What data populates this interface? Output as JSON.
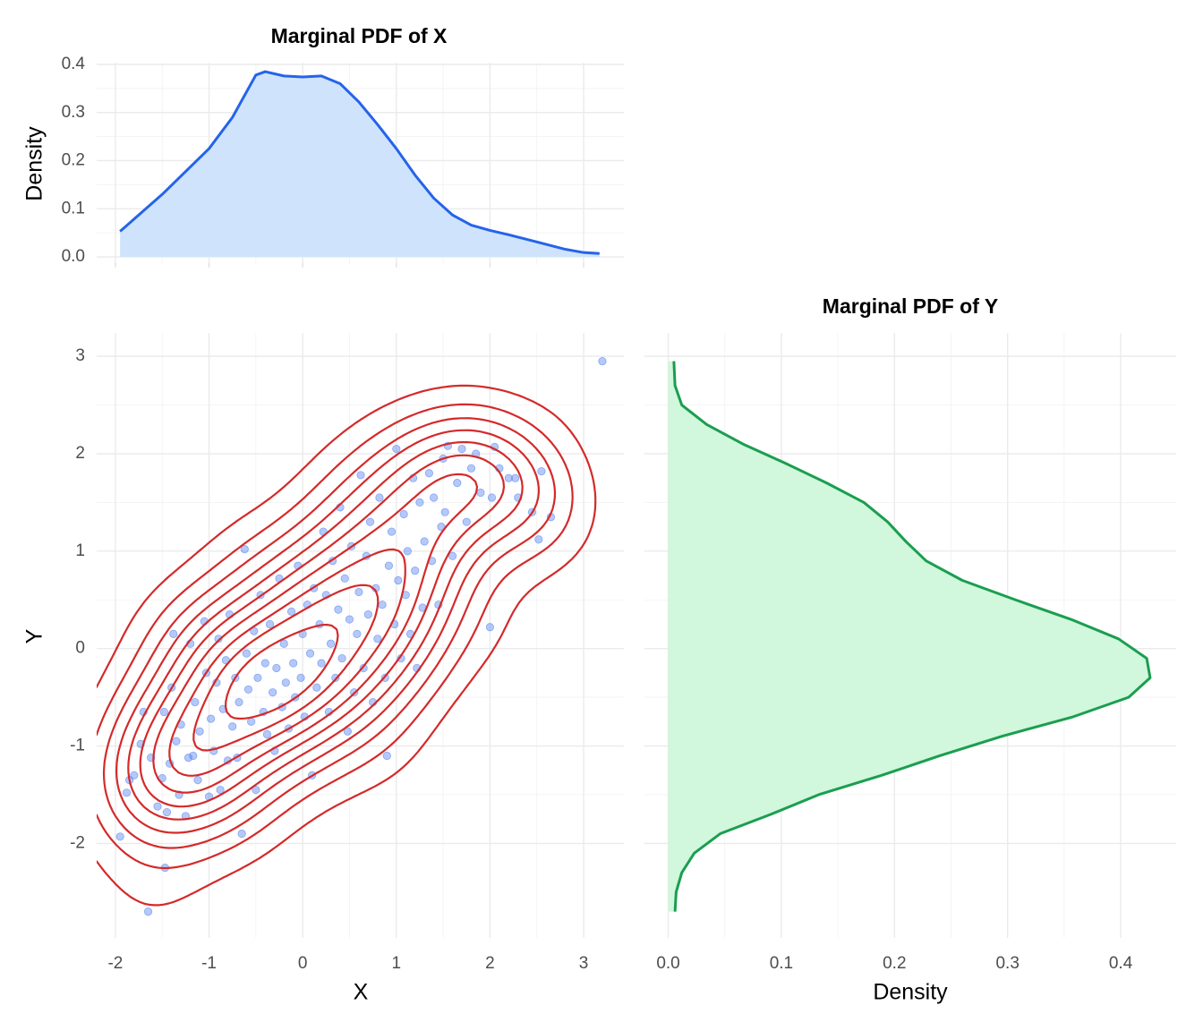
{
  "chart_data": [
    {
      "type": "area",
      "title": "Marginal PDF of X",
      "y_label": "Density",
      "x": [
        -1.95,
        -1.5,
        -1.0,
        -0.75,
        -0.5,
        -0.4,
        -0.2,
        0,
        0.2,
        0.4,
        0.6,
        0.8,
        1.0,
        1.2,
        1.4,
        1.6,
        1.8,
        2.0,
        2.2,
        2.5,
        2.8,
        3.0,
        3.17
      ],
      "values": [
        0.053,
        0.13,
        0.225,
        0.29,
        0.378,
        0.385,
        0.376,
        0.374,
        0.376,
        0.36,
        0.322,
        0.275,
        0.225,
        0.17,
        0.122,
        0.087,
        0.066,
        0.055,
        0.046,
        0.031,
        0.016,
        0.009,
        0.007
      ],
      "color": "#2563eb",
      "fill": "#cfe4fc",
      "xlim": [
        -2.2,
        3.43
      ],
      "ylim": [
        -0.0167,
        0.4037
      ],
      "xticks": [
        -2,
        -1,
        0,
        1,
        2,
        3
      ],
      "yticks": [
        {
          "value": 0,
          "label": "0.0"
        },
        0.1,
        0.2,
        0.3,
        0.4
      ],
      "grid": true
    },
    {
      "type": "scatter",
      "x_label": "X",
      "y_label": "Y",
      "x": [
        -1.95,
        -1.88,
        -1.85,
        -1.8,
        -1.73,
        -1.7,
        -1.65,
        -1.62,
        -1.55,
        -1.5,
        -1.48,
        -1.47,
        -1.45,
        -1.42,
        -1.4,
        -1.38,
        -1.35,
        -1.32,
        -1.3,
        -1.25,
        -1.22,
        -1.2,
        -1.17,
        -1.15,
        -1.12,
        -1.1,
        -1.05,
        -1.03,
        -1.0,
        -0.98,
        -0.95,
        -0.92,
        -0.9,
        -0.88,
        -0.85,
        -0.82,
        -0.8,
        -0.78,
        -0.75,
        -0.72,
        -0.7,
        -0.68,
        -0.65,
        -0.62,
        -0.6,
        -0.58,
        -0.55,
        -0.52,
        -0.5,
        -0.48,
        -0.45,
        -0.42,
        -0.4,
        -0.38,
        -0.35,
        -0.32,
        -0.3,
        -0.28,
        -0.25,
        -0.22,
        -0.2,
        -0.18,
        -0.15,
        -0.12,
        -0.1,
        -0.08,
        -0.05,
        -0.02,
        0.0,
        0.02,
        0.05,
        0.08,
        0.1,
        0.12,
        0.15,
        0.18,
        0.2,
        0.22,
        0.25,
        0.28,
        0.3,
        0.32,
        0.35,
        0.38,
        0.4,
        0.42,
        0.45,
        0.48,
        0.5,
        0.52,
        0.55,
        0.58,
        0.6,
        0.62,
        0.65,
        0.68,
        0.7,
        0.72,
        0.75,
        0.78,
        0.8,
        0.82,
        0.85,
        0.88,
        0.9,
        0.92,
        0.95,
        0.98,
        1.0,
        1.02,
        1.05,
        1.08,
        1.1,
        1.12,
        1.15,
        1.18,
        1.2,
        1.22,
        1.25,
        1.28,
        1.3,
        1.35,
        1.38,
        1.4,
        1.45,
        1.48,
        1.5,
        1.52,
        1.55,
        1.6,
        1.65,
        1.7,
        1.75,
        1.8,
        1.85,
        1.9,
        2.0,
        2.02,
        2.05,
        2.1,
        2.2,
        2.27,
        2.3,
        2.45,
        2.52,
        2.55,
        2.65,
        3.2
      ],
      "values": [
        -1.93,
        -1.48,
        -1.35,
        -1.3,
        -0.98,
        -0.65,
        -2.7,
        -1.12,
        -1.62,
        -1.33,
        -0.65,
        -2.25,
        -1.68,
        -1.18,
        -0.4,
        0.15,
        -0.95,
        -1.5,
        -0.78,
        -1.72,
        -1.12,
        0.05,
        -1.1,
        -0.55,
        -1.35,
        -0.85,
        0.28,
        -0.25,
        -1.52,
        -0.72,
        -1.05,
        -0.35,
        0.1,
        -1.45,
        -0.62,
        -0.12,
        -1.15,
        0.35,
        -0.8,
        -0.3,
        -1.12,
        -0.55,
        -1.9,
        1.02,
        -0.05,
        -0.42,
        -0.75,
        0.18,
        -1.45,
        -0.3,
        0.55,
        -0.65,
        -0.15,
        -0.88,
        0.25,
        -0.45,
        -1.05,
        -0.2,
        0.72,
        -0.6,
        0.05,
        -0.35,
        -0.82,
        0.38,
        -0.15,
        -0.5,
        0.85,
        -0.3,
        0.15,
        -0.7,
        0.45,
        -0.05,
        -1.3,
        0.62,
        -0.4,
        0.25,
        -0.15,
        1.2,
        0.55,
        -0.65,
        0.05,
        0.9,
        -0.3,
        0.4,
        1.45,
        -0.1,
        0.72,
        -0.85,
        0.3,
        1.05,
        -0.45,
        0.15,
        0.58,
        1.78,
        -0.2,
        0.95,
        0.35,
        1.3,
        -0.55,
        0.62,
        0.1,
        1.55,
        0.45,
        -0.3,
        -1.1,
        0.85,
        1.2,
        0.25,
        2.05,
        0.7,
        -0.1,
        1.38,
        0.55,
        1.0,
        0.15,
        1.75,
        0.8,
        -0.2,
        1.5,
        0.42,
        1.1,
        1.8,
        0.9,
        1.55,
        0.45,
        1.25,
        1.95,
        1.4,
        2.08,
        0.95,
        1.7,
        2.05,
        1.3,
        1.85,
        2.0,
        1.6,
        0.22,
        1.55,
        2.07,
        1.85,
        1.75,
        1.75,
        1.55,
        1.4,
        1.12,
        1.82,
        1.35,
        2.95
      ],
      "color": "#4f7ef0",
      "contour_color": "#d42a2a",
      "xlim": [
        -2.2,
        3.43
      ],
      "ylim": [
        -2.97,
        3.24
      ],
      "xticks": [
        -2,
        -1,
        0,
        1,
        2,
        3
      ],
      "yticks": [
        -2,
        -1,
        0,
        1,
        2,
        3
      ],
      "grid": true
    },
    {
      "type": "area_h",
      "title": "Marginal PDF of Y",
      "x_label": "Density",
      "y": [
        2.95,
        2.7,
        2.5,
        2.3,
        2.1,
        1.9,
        1.7,
        1.5,
        1.3,
        1.1,
        0.9,
        0.7,
        0.5,
        0.3,
        0.1,
        -0.1,
        -0.3,
        -0.5,
        -0.7,
        -0.9,
        -1.1,
        -1.3,
        -1.5,
        -1.7,
        -1.9,
        -2.1,
        -2.3,
        -2.5,
        -2.7
      ],
      "values": [
        0.005,
        0.006,
        0.012,
        0.034,
        0.066,
        0.104,
        0.14,
        0.173,
        0.194,
        0.21,
        0.228,
        0.26,
        0.307,
        0.356,
        0.398,
        0.423,
        0.426,
        0.407,
        0.358,
        0.295,
        0.24,
        0.189,
        0.133,
        0.091,
        0.046,
        0.023,
        0.012,
        0.007,
        0.006
      ],
      "color": "#1a9e50",
      "fill": "#d1f7dc",
      "xlim": [
        -0.021,
        0.449
      ],
      "ylim": [
        -2.97,
        3.24
      ],
      "xticks": [
        {
          "value": 0,
          "label": "0.0"
        },
        0.1,
        0.2,
        0.3,
        0.4
      ],
      "yticks": [
        -2,
        -1,
        0,
        1,
        2,
        3
      ],
      "grid": true
    }
  ]
}
